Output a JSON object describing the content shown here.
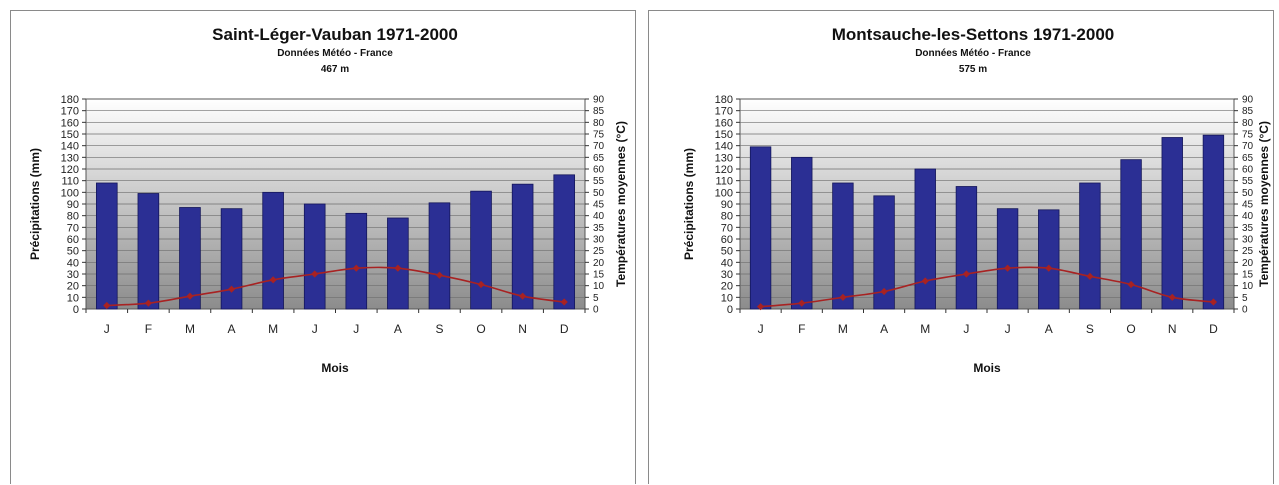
{
  "chart_data": [
    {
      "type": "bar",
      "title": "Saint-Léger-Vauban 1971-2000",
      "subtitle": "Données Météo - France",
      "altitude": "467 m",
      "xlabel": "Mois",
      "ylabel": "Précipitations (mm)",
      "y2label": "Températures moyennes (°C)",
      "categories": [
        "J",
        "F",
        "M",
        "A",
        "M",
        "J",
        "J",
        "A",
        "S",
        "O",
        "N",
        "D"
      ],
      "ylim": [
        0,
        180
      ],
      "y2lim": [
        0,
        90
      ],
      "grid": true,
      "series": [
        {
          "name": "Précipitations (mm)",
          "type": "bar",
          "axis": "left",
          "color": "#2b2f94",
          "values": [
            108,
            99,
            87,
            86,
            100,
            90,
            82,
            78,
            91,
            101,
            107,
            115
          ]
        },
        {
          "name": "Températures moyennes (°C)",
          "type": "line",
          "axis": "right",
          "color": "#a82222",
          "values": [
            1.5,
            2.5,
            5.5,
            8.5,
            12.5,
            15,
            17.5,
            17.5,
            14.5,
            10.5,
            5.5,
            3
          ]
        }
      ]
    },
    {
      "type": "bar",
      "title": "Montsauche-les-Settons 1971-2000",
      "subtitle": "Données Météo - France",
      "altitude": "575 m",
      "xlabel": "Mois",
      "ylabel": "Précipitations (mm)",
      "y2label": "Températures moyennes (°C)",
      "categories": [
        "J",
        "F",
        "M",
        "A",
        "M",
        "J",
        "J",
        "A",
        "S",
        "O",
        "N",
        "D"
      ],
      "ylim": [
        0,
        180
      ],
      "y2lim": [
        0,
        90
      ],
      "grid": true,
      "series": [
        {
          "name": "Précipitations (mm)",
          "type": "bar",
          "axis": "left",
          "color": "#2b2f94",
          "values": [
            139,
            130,
            108,
            97,
            120,
            105,
            86,
            85,
            108,
            128,
            147,
            149
          ]
        },
        {
          "name": "Températures moyennes (°C)",
          "type": "line",
          "axis": "right",
          "color": "#a82222",
          "values": [
            1,
            2.5,
            5,
            7.5,
            12,
            15,
            17.5,
            17.5,
            14,
            10.5,
            5,
            3
          ]
        }
      ]
    }
  ]
}
